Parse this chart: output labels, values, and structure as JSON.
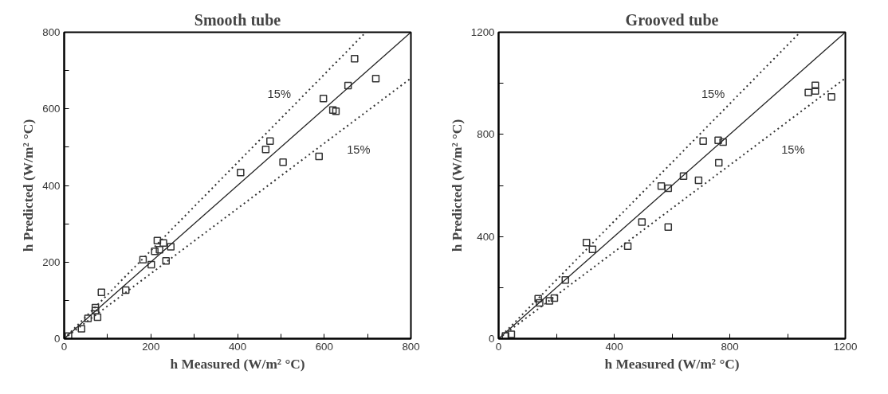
{
  "chart_data": [
    {
      "type": "scatter",
      "title": "Smooth tube",
      "xlabel": "h Measured (W/m² °C)",
      "ylabel": "h Predicted (W/m² °C)",
      "xlim": [
        0,
        800
      ],
      "ylim": [
        0,
        800
      ],
      "xticks": [
        0,
        {
          "value": 100,
          "label": null
        },
        200,
        {
          "value": 300,
          "label": null
        },
        400,
        {
          "value": 500,
          "label": null
        },
        600,
        {
          "value": 700,
          "label": null
        },
        800
      ],
      "yticks": [
        0,
        {
          "value": 100,
          "label": null
        },
        200,
        {
          "value": 300,
          "label": null
        },
        400,
        {
          "value": 500,
          "label": null
        },
        600,
        {
          "value": 700,
          "label": null
        },
        800
      ],
      "grid": false,
      "marker": "square",
      "annotations": [
        "15%",
        "15%"
      ],
      "series": [
        {
          "color": "#333333",
          "x": [
            10,
            40,
            55,
            72,
            72,
            77,
            86,
            142,
            182,
            201,
            209,
            215,
            220,
            229,
            235,
            246,
            407,
            465,
            475,
            505,
            588,
            598,
            620,
            627,
            655,
            670,
            719
          ],
          "values": [
            7,
            26,
            53,
            81,
            73,
            56,
            121,
            127,
            206,
            193,
            228,
            256,
            232,
            250,
            203,
            240,
            434,
            494,
            516,
            461,
            476,
            627,
            597,
            594,
            661,
            731,
            679
          ]
        },
        {
          "type": "line",
          "color": "#222222",
          "line_style": "solid",
          "marker": "none",
          "x": [
            0,
            800
          ],
          "values": [
            0,
            800
          ]
        },
        {
          "type": "line",
          "color": "#333333",
          "line_style": "dotted",
          "marker": "none",
          "x": [
            0,
            695
          ],
          "values": [
            0,
            799
          ]
        },
        {
          "type": "line",
          "color": "#333333",
          "line_style": "dotted",
          "marker": "none",
          "x": [
            0,
            800
          ],
          "values": [
            0,
            680
          ]
        }
      ]
    },
    {
      "type": "scatter",
      "title": "Grooved tube",
      "xlabel": "h Measured (W/m² °C)",
      "ylabel": "h Predicted (W/m² °C)",
      "xlim": [
        0,
        1200
      ],
      "ylim": [
        0,
        1200
      ],
      "xticks": [
        0,
        {
          "value": 200,
          "label": null
        },
        400,
        {
          "value": 600,
          "label": null
        },
        800,
        {
          "value": 1000,
          "label": null
        },
        1200
      ],
      "yticks": [
        0,
        {
          "value": 200,
          "label": null
        },
        400,
        {
          "value": 600,
          "label": null
        },
        800,
        {
          "value": 1000,
          "label": null
        },
        1200
      ],
      "grid": false,
      "marker": "square",
      "annotations": [
        "15%",
        "15%"
      ],
      "series": [
        {
          "color": "#333333",
          "x": [
            24,
            44,
            137,
            142,
            176,
            193,
            231,
            304,
            325,
            447,
            496,
            563,
            587,
            587,
            640,
            692,
            708,
            760,
            762,
            777,
            1072,
            1096,
            1096,
            1152
          ],
          "values": [
            11,
            17,
            157,
            140,
            148,
            159,
            230,
            376,
            350,
            362,
            457,
            598,
            589,
            437,
            637,
            620,
            774,
            777,
            689,
            770,
            964,
            992,
            970,
            947
          ]
        },
        {
          "type": "line",
          "color": "#222222",
          "line_style": "solid",
          "marker": "none",
          "x": [
            0,
            1200
          ],
          "values": [
            0,
            1200
          ]
        },
        {
          "type": "line",
          "color": "#333333",
          "line_style": "dotted",
          "marker": "none",
          "x": [
            0,
            1040
          ],
          "values": [
            0,
            1196
          ]
        },
        {
          "type": "line",
          "color": "#333333",
          "line_style": "dotted",
          "marker": "none",
          "x": [
            0,
            1200
          ],
          "values": [
            0,
            1020
          ]
        }
      ]
    }
  ]
}
